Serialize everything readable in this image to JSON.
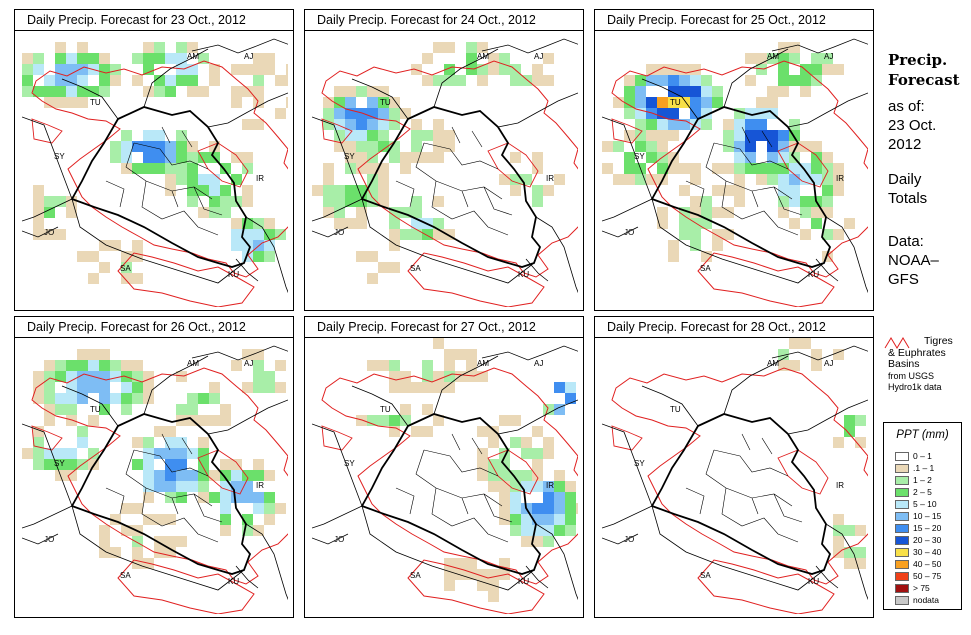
{
  "panels": [
    {
      "title": "Daily Precip. Forecast for  23 Oct., 2012",
      "grid": "23"
    },
    {
      "title": "Daily Precip. Forecast for  24 Oct., 2012",
      "grid": "24"
    },
    {
      "title": "Daily Precip. Forecast for  25 Oct., 2012",
      "grid": "25"
    },
    {
      "title": "Daily Precip. Forecast for  26 Oct., 2012",
      "grid": "26"
    },
    {
      "title": "Daily Precip. Forecast for  27 Oct., 2012",
      "grid": "27"
    },
    {
      "title": "Daily Precip. Forecast for  28 Oct., 2012",
      "grid": "28"
    }
  ],
  "map_labels": [
    "AM",
    "AJ",
    "TU",
    "SY",
    "IR",
    "JO",
    "SA",
    "KU"
  ],
  "sidebar": {
    "title_line1": "Precip.",
    "title_line2": "Forecast",
    "asof_label": "as of:",
    "asof_date1": "23 Oct.",
    "asof_date2": "2012",
    "totals1": "Daily",
    "totals2": "Totals",
    "data1": "Data:",
    "data2": "NOAA–",
    "data3": "GFS"
  },
  "basin_legend": {
    "line1": "Tigres",
    "line2": "& Euphrates",
    "line3": "Basins",
    "line4": "from USGS",
    "line5": "Hydro1k data"
  },
  "legend": {
    "title": "PPT (mm)",
    "items": [
      {
        "label": "0 – 1",
        "color": "#ffffff"
      },
      {
        "label": ".1 – 1",
        "color": "#ead8b7"
      },
      {
        "label": "1 – 2",
        "color": "#a8eea8"
      },
      {
        "label": "2 – 5",
        "color": "#6be06b"
      },
      {
        "label": "5 – 10",
        "color": "#b9e8f8"
      },
      {
        "label": "10 – 15",
        "color": "#7ebdf4"
      },
      {
        "label": "15 – 20",
        "color": "#3f8ef0"
      },
      {
        "label": "20 – 30",
        "color": "#1655d6"
      },
      {
        "label": "30 – 40",
        "color": "#f8e048"
      },
      {
        "label": "40 – 50",
        "color": "#f8a020"
      },
      {
        "label": "50 – 75",
        "color": "#f04018"
      },
      {
        "label": "> 75",
        "color": "#a01010"
      },
      {
        "label": "nodata",
        "color": "#c8c8c8"
      }
    ]
  },
  "colors": {
    "basin": "#e02020",
    "border": "#000000"
  }
}
